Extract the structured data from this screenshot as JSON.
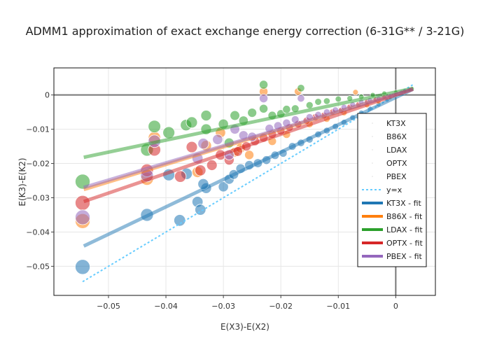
{
  "chart_data": {
    "type": "scatter",
    "title": "ADMM1 approximation of exact exchange energy correction (6-31G** / 3-21G)",
    "xlabel": "E(X3)-E(X2)",
    "ylabel": "E(K3)-E(K2)",
    "xlim": [
      -0.0595,
      0.0069
    ],
    "ylim": [
      -0.0585,
      0.0079
    ],
    "xticks": [
      -0.05,
      -0.04,
      -0.03,
      -0.02,
      -0.01,
      0
    ],
    "xtick_labels": [
      "−0.05",
      "−0.04",
      "−0.03",
      "−0.02",
      "−0.01",
      "0"
    ],
    "yticks": [
      -0.05,
      -0.04,
      -0.03,
      -0.02,
      -0.01,
      0
    ],
    "ytick_labels": [
      "−0.05",
      "−0.04",
      "−0.03",
      "−0.02",
      "−0.01",
      "0"
    ],
    "grid": true,
    "zero_lines": true,
    "legend_position": "right-inside",
    "series": [
      {
        "name": "KT3X",
        "kind": "markers",
        "color": "#1f77b4",
        "points": [
          [
            -0.0545,
            -0.0502
          ],
          [
            -0.0433,
            -0.035
          ],
          [
            -0.0376,
            -0.0366
          ],
          [
            -0.0395,
            -0.0233
          ],
          [
            -0.0364,
            -0.023
          ],
          [
            -0.0345,
            -0.0312
          ],
          [
            -0.034,
            -0.0335
          ],
          [
            -0.033,
            -0.0272
          ],
          [
            -0.0335,
            -0.026
          ],
          [
            -0.03,
            -0.0268
          ],
          [
            -0.029,
            -0.0246
          ],
          [
            -0.0282,
            -0.0232
          ],
          [
            -0.027,
            -0.0215
          ],
          [
            -0.0255,
            -0.0205
          ],
          [
            -0.024,
            -0.0199
          ],
          [
            -0.0225,
            -0.019
          ],
          [
            -0.021,
            -0.0176
          ],
          [
            -0.0196,
            -0.017
          ],
          [
            -0.018,
            -0.015
          ],
          [
            -0.0165,
            -0.014
          ],
          [
            -0.015,
            -0.013
          ],
          [
            -0.0135,
            -0.0115
          ],
          [
            -0.012,
            -0.0104
          ],
          [
            -0.0105,
            -0.0092
          ],
          [
            -0.009,
            -0.008
          ],
          [
            -0.0075,
            -0.0066
          ],
          [
            -0.006,
            -0.0052
          ],
          [
            -0.0045,
            -0.004
          ],
          [
            -0.003,
            -0.0028
          ],
          [
            -0.0015,
            -0.0014
          ],
          [
            0.0,
            0.0
          ],
          [
            0.0015,
            0.001
          ],
          [
            0.0025,
            0.0018
          ]
        ]
      },
      {
        "name": "B86X",
        "kind": "markers",
        "color": "#ff7f0e",
        "points": [
          [
            -0.0545,
            -0.0368
          ],
          [
            -0.0433,
            -0.0245
          ],
          [
            -0.042,
            -0.0125
          ],
          [
            -0.0345,
            -0.0225
          ],
          [
            -0.033,
            -0.0148
          ],
          [
            -0.0305,
            -0.011
          ],
          [
            -0.028,
            -0.0167
          ],
          [
            -0.027,
            -0.0155
          ],
          [
            -0.0255,
            -0.0175
          ],
          [
            -0.023,
            0.001
          ],
          [
            -0.0215,
            -0.0135
          ],
          [
            -0.019,
            -0.0115
          ],
          [
            -0.017,
            0.001
          ],
          [
            -0.015,
            -0.0085
          ],
          [
            -0.012,
            -0.007
          ],
          [
            -0.009,
            -0.0052
          ],
          [
            -0.007,
            0.0008
          ],
          [
            -0.005,
            -0.003
          ],
          [
            -0.003,
            -0.002
          ],
          [
            -0.001,
            -0.0008
          ],
          [
            0.0015,
            0.0008
          ],
          [
            0.0025,
            0.0016
          ]
        ]
      },
      {
        "name": "LDAX",
        "kind": "markers",
        "color": "#2ca02c",
        "points": [
          [
            -0.0545,
            -0.0253
          ],
          [
            -0.0433,
            -0.016
          ],
          [
            -0.042,
            -0.0092
          ],
          [
            -0.0395,
            -0.011
          ],
          [
            -0.0365,
            -0.0088
          ],
          [
            -0.0355,
            -0.008
          ],
          [
            -0.033,
            -0.01
          ],
          [
            -0.033,
            -0.006
          ],
          [
            -0.03,
            -0.0085
          ],
          [
            -0.029,
            -0.014
          ],
          [
            -0.028,
            -0.006
          ],
          [
            -0.0265,
            -0.0075
          ],
          [
            -0.025,
            -0.0052
          ],
          [
            -0.023,
            0.003
          ],
          [
            -0.023,
            -0.004
          ],
          [
            -0.0215,
            -0.006
          ],
          [
            -0.02,
            -0.0055
          ],
          [
            -0.019,
            -0.0042
          ],
          [
            -0.0175,
            -0.004
          ],
          [
            -0.0165,
            0.002
          ],
          [
            -0.015,
            -0.003
          ],
          [
            -0.0135,
            -0.002
          ],
          [
            -0.012,
            -0.0018
          ],
          [
            -0.01,
            -0.0012
          ],
          [
            -0.008,
            -0.001
          ],
          [
            -0.006,
            -0.0005
          ],
          [
            -0.004,
            0.0
          ],
          [
            -0.002,
            0.0005
          ],
          [
            0.0,
            0.0008
          ],
          [
            0.0015,
            0.0012
          ],
          [
            0.0028,
            0.0018
          ]
        ]
      },
      {
        "name": "OPTX",
        "kind": "markers",
        "color": "#d62728",
        "points": [
          [
            -0.0545,
            -0.0315
          ],
          [
            -0.0433,
            -0.022
          ],
          [
            -0.042,
            -0.016
          ],
          [
            -0.0375,
            -0.0238
          ],
          [
            -0.0355,
            -0.0152
          ],
          [
            -0.034,
            -0.022
          ],
          [
            -0.032,
            -0.0205
          ],
          [
            -0.0305,
            -0.0175
          ],
          [
            -0.029,
            -0.019
          ],
          [
            -0.0275,
            -0.0165
          ],
          [
            -0.026,
            -0.015
          ],
          [
            -0.0245,
            -0.0135
          ],
          [
            -0.023,
            -0.0125
          ],
          [
            -0.0215,
            -0.0115
          ],
          [
            -0.02,
            -0.0105
          ],
          [
            -0.0185,
            -0.0095
          ],
          [
            -0.017,
            -0.0085
          ],
          [
            -0.0155,
            -0.0075
          ],
          [
            -0.014,
            -0.0065
          ],
          [
            -0.0125,
            -0.006
          ],
          [
            -0.011,
            -0.005
          ],
          [
            -0.0095,
            -0.0045
          ],
          [
            -0.008,
            -0.0035
          ],
          [
            -0.0065,
            -0.0028
          ],
          [
            -0.005,
            -0.002
          ],
          [
            -0.0035,
            -0.0013
          ],
          [
            -0.002,
            -0.0006
          ],
          [
            0.0,
            0.0002
          ],
          [
            0.0015,
            0.001
          ],
          [
            0.0025,
            0.0016
          ]
        ]
      },
      {
        "name": "PBEX",
        "kind": "markers",
        "color": "#9467bd",
        "points": [
          [
            -0.0545,
            -0.0357
          ],
          [
            -0.0433,
            -0.0235
          ],
          [
            -0.042,
            -0.0135
          ],
          [
            -0.0345,
            -0.0185
          ],
          [
            -0.0335,
            -0.0142
          ],
          [
            -0.031,
            -0.013
          ],
          [
            -0.029,
            -0.0175
          ],
          [
            -0.028,
            -0.01
          ],
          [
            -0.0265,
            -0.0118
          ],
          [
            -0.025,
            -0.0122
          ],
          [
            -0.023,
            -0.001
          ],
          [
            -0.022,
            -0.0098
          ],
          [
            -0.0205,
            -0.009
          ],
          [
            -0.019,
            -0.0082
          ],
          [
            -0.0175,
            -0.0072
          ],
          [
            -0.0165,
            -0.001
          ],
          [
            -0.015,
            -0.0065
          ],
          [
            -0.0135,
            -0.0058
          ],
          [
            -0.012,
            -0.005
          ],
          [
            -0.0105,
            -0.0044
          ],
          [
            -0.009,
            -0.0036
          ],
          [
            -0.0075,
            -0.0028
          ],
          [
            -0.006,
            -0.002
          ],
          [
            -0.0045,
            -0.0015
          ],
          [
            -0.003,
            -0.001
          ],
          [
            -0.001,
            -0.0003
          ],
          [
            0.001,
            0.0008
          ],
          [
            0.0025,
            0.0015
          ]
        ]
      },
      {
        "name": "y=x",
        "kind": "line",
        "dash": "dot",
        "color": "#66ccff",
        "points": [
          [
            -0.0545,
            -0.0545
          ],
          [
            0.003,
            0.003
          ]
        ]
      },
      {
        "name": "KT3X - fit",
        "kind": "line",
        "color": "#1f77b4",
        "points": [
          [
            -0.0543,
            -0.0441
          ],
          [
            0.003,
            0.0017
          ]
        ]
      },
      {
        "name": "B86X - fit",
        "kind": "line",
        "color": "#ff7f0e",
        "points": [
          [
            -0.0543,
            -0.0276
          ],
          [
            0.003,
            0.0017
          ]
        ]
      },
      {
        "name": "LDAX - fit",
        "kind": "line",
        "color": "#2ca02c",
        "points": [
          [
            -0.0543,
            -0.0182
          ],
          [
            0.003,
            0.0019
          ]
        ]
      },
      {
        "name": "OPTX - fit",
        "kind": "line",
        "color": "#d62728",
        "points": [
          [
            -0.0543,
            -0.0311
          ],
          [
            0.003,
            0.0017
          ]
        ]
      },
      {
        "name": "PBEX - fit",
        "kind": "line",
        "color": "#9467bd",
        "points": [
          [
            -0.0543,
            -0.027
          ],
          [
            0.003,
            0.0017
          ]
        ]
      }
    ],
    "legend": [
      "KT3X",
      "B86X",
      "LDAX",
      "OPTX",
      "PBEX",
      "y=x",
      "KT3X - fit",
      "B86X - fit",
      "LDAX - fit",
      "OPTX - fit",
      "PBEX - fit"
    ]
  }
}
